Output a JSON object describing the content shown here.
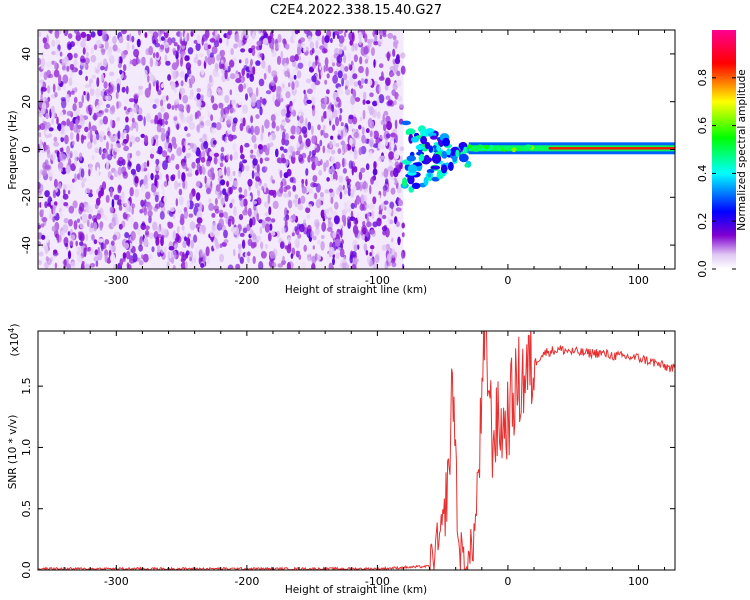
{
  "title": "C2E4.2022.338.15.40.G27",
  "colors": {
    "snr_line": "#e83030",
    "axis": "#000000"
  },
  "chart_data": [
    {
      "type": "heatmap",
      "xlabel": "Height of straight line (km)",
      "ylabel": "Frequency (Hz)",
      "xlim": [
        -360,
        128
      ],
      "ylim": [
        -50,
        50
      ],
      "x_ticks": [
        -300,
        -200,
        -100,
        0,
        100
      ],
      "y_ticks": [
        -40,
        -20,
        0,
        20,
        40
      ],
      "x_tick_labels": [
        "-300",
        "-200",
        "-100",
        "0",
        "100"
      ],
      "y_tick_labels": [
        "-40",
        "-20",
        "0",
        "20",
        "40"
      ],
      "grid": false,
      "colorbar": {
        "label": "Normalized spectral amplitude",
        "range": [
          0.0,
          1.0
        ],
        "ticks": [
          0.0,
          0.2,
          0.4,
          0.6,
          0.8
        ],
        "tick_labels": [
          "0.0",
          "0.2",
          "0.4",
          "0.6",
          "0.8"
        ],
        "colormap": [
          "#ffffff",
          "#d8b8f0",
          "#8000d0",
          "#0000ff",
          "#00ffff",
          "#00ff00",
          "#ffff00",
          "#ff0000",
          "#ff00a0"
        ]
      },
      "regions": [
        {
          "name": "noise",
          "x_range": [
            -360,
            -80
          ],
          "freq_range": [
            -50,
            50
          ],
          "amplitude": 0.08
        },
        {
          "name": "transition",
          "x_range": [
            -80,
            -30
          ],
          "freq_range": [
            -18,
            12
          ],
          "amplitude": 0.35
        },
        {
          "name": "carrier",
          "x_range": [
            -30,
            128
          ],
          "freq_range": [
            -2,
            3
          ],
          "center_freq": 0.5,
          "amplitude": 0.85
        }
      ]
    },
    {
      "type": "line",
      "xlabel": "Height of straight line (km)",
      "ylabel": "SNR (10 * v/v)",
      "y_scale_label": "(x10",
      "y_scale_exponent": "4",
      "y_scale_close": ")",
      "xlim": [
        -360,
        128
      ],
      "ylim": [
        0.0,
        1.95
      ],
      "x_ticks": [
        -300,
        -200,
        -100,
        0,
        100
      ],
      "y_ticks": [
        0.0,
        0.5,
        1.0,
        1.5
      ],
      "x_tick_labels": [
        "-300",
        "-200",
        "-100",
        "0",
        "100"
      ],
      "y_tick_labels": [
        "0.0",
        "0.5",
        "1.0",
        "1.5"
      ],
      "grid": false,
      "x": [
        -360,
        -100,
        -60,
        -50,
        -45,
        -42,
        -38,
        -35,
        -30,
        -25,
        -20,
        -17,
        -12,
        -8,
        -3,
        0,
        5,
        10,
        15,
        20,
        25,
        30,
        40,
        50,
        60,
        70,
        80,
        90,
        100,
        110,
        120,
        128
      ],
      "y": [
        0.01,
        0.01,
        0.03,
        0.3,
        0.85,
        1.6,
        0.2,
        0.1,
        0.05,
        0.35,
        1.3,
        1.95,
        1.05,
        1.2,
        1.15,
        1.25,
        1.45,
        1.55,
        1.62,
        1.68,
        1.75,
        1.78,
        1.8,
        1.78,
        1.77,
        1.77,
        1.75,
        1.74,
        1.73,
        1.7,
        1.66,
        1.64
      ]
    }
  ]
}
